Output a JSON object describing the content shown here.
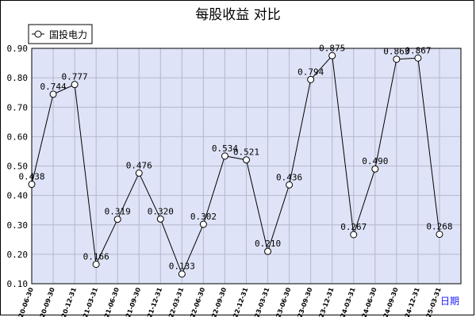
{
  "chart_data": {
    "type": "line",
    "title": "每股收益  对比",
    "xlabel": "日期",
    "ylabel": "",
    "ylim": [
      0.1,
      0.9
    ],
    "yticks": [
      "0.10",
      "0.20",
      "0.30",
      "0.40",
      "0.50",
      "0.60",
      "0.70",
      "0.80",
      "0.90"
    ],
    "grid": true,
    "legend_position": "top-left",
    "colors": {
      "plot_bg": "#dfe3f7",
      "grid": "#b4b8cc",
      "line": "#000000",
      "marker_fill": "#ffffff"
    },
    "categories": [
      "2020-06-30",
      "2020-09-30",
      "2020-12-31",
      "2021-03-31",
      "2021-06-30",
      "2021-09-30",
      "2021-12-31",
      "2022-03-31",
      "2022-06-30",
      "2022-09-30",
      "2022-12-31",
      "2023-03-31",
      "2023-06-30",
      "2023-09-30",
      "2023-12-31",
      "2024-03-31",
      "2024-06-30",
      "2024-09-30",
      "2024-12-31",
      "2025-03-31"
    ],
    "series": [
      {
        "name": "国投电力",
        "values": [
          0.438,
          0.744,
          0.777,
          0.166,
          0.319,
          0.476,
          0.32,
          0.133,
          0.302,
          0.534,
          0.521,
          0.21,
          0.436,
          0.794,
          0.875,
          0.267,
          0.49,
          0.863,
          0.867,
          0.268
        ],
        "labels": [
          "0.438",
          "0.744",
          "0.777",
          "0.166",
          "0.319",
          "0.476",
          "0.320",
          "0.133",
          "0.302",
          "0.534",
          "0.521",
          "0.210",
          "0.436",
          "0.794",
          "0.875",
          "0.267",
          "0.490",
          "0.863",
          "0.867",
          "0.268"
        ]
      }
    ]
  }
}
